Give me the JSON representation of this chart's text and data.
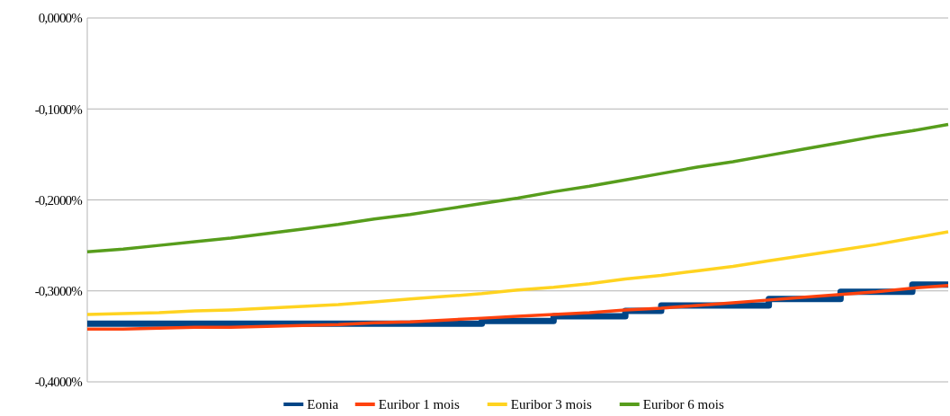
{
  "chart_data": {
    "type": "line",
    "categories": [
      null,
      null,
      null,
      null,
      null,
      null,
      null,
      null,
      null,
      null,
      null,
      null,
      null,
      null,
      null,
      null,
      null,
      null,
      null,
      null,
      null,
      null,
      null,
      null,
      null
    ],
    "series": [
      {
        "name": "Eonia",
        "type": "step",
        "color": "#004586",
        "values": [
          -0.336,
          -0.336,
          -0.336,
          -0.336,
          -0.336,
          -0.336,
          -0.336,
          -0.336,
          -0.336,
          -0.336,
          -0.336,
          -0.333,
          -0.333,
          -0.328,
          -0.328,
          -0.322,
          -0.316,
          -0.316,
          -0.316,
          -0.309,
          -0.309,
          -0.301,
          -0.301,
          -0.293,
          -0.293
        ]
      },
      {
        "name": "Euribor 1 mois",
        "color": "#ff420e",
        "values": [
          -0.342,
          -0.342,
          -0.341,
          -0.34,
          -0.34,
          -0.339,
          -0.338,
          -0.337,
          -0.335,
          -0.334,
          -0.332,
          -0.33,
          -0.328,
          -0.326,
          -0.324,
          -0.321,
          -0.319,
          -0.316,
          -0.313,
          -0.31,
          -0.307,
          -0.304,
          -0.301,
          -0.297,
          -0.294
        ]
      },
      {
        "name": "Euribor 3 mois",
        "color": "#ffd320",
        "values": [
          -0.326,
          -0.325,
          -0.324,
          -0.322,
          -0.321,
          -0.319,
          -0.317,
          -0.315,
          -0.312,
          -0.309,
          -0.306,
          -0.303,
          -0.299,
          -0.296,
          -0.292,
          -0.287,
          -0.283,
          -0.278,
          -0.273,
          -0.267,
          -0.261,
          -0.255,
          -0.249,
          -0.242,
          -0.235
        ]
      },
      {
        "name": "Euribor 6 mois",
        "color": "#579d1c",
        "values": [
          -0.257,
          -0.254,
          -0.25,
          -0.246,
          -0.242,
          -0.237,
          -0.232,
          -0.227,
          -0.221,
          -0.216,
          -0.21,
          -0.204,
          -0.198,
          -0.191,
          -0.185,
          -0.178,
          -0.171,
          -0.164,
          -0.158,
          -0.151,
          -0.144,
          -0.137,
          -0.13,
          -0.124,
          -0.117
        ]
      }
    ],
    "ylim": [
      -0.4,
      0
    ],
    "yticks": [
      {
        "value": -0.4,
        "label": "-0,4000%"
      },
      {
        "value": -0.3,
        "label": "-0,3000%"
      },
      {
        "value": -0.2,
        "label": "-0,2000%"
      },
      {
        "value": -0.1,
        "label": "-0,1000%"
      },
      {
        "value": 0,
        "label": "0,0000%"
      }
    ],
    "grid": "y",
    "legend": "bottom",
    "line_style": "solid"
  }
}
